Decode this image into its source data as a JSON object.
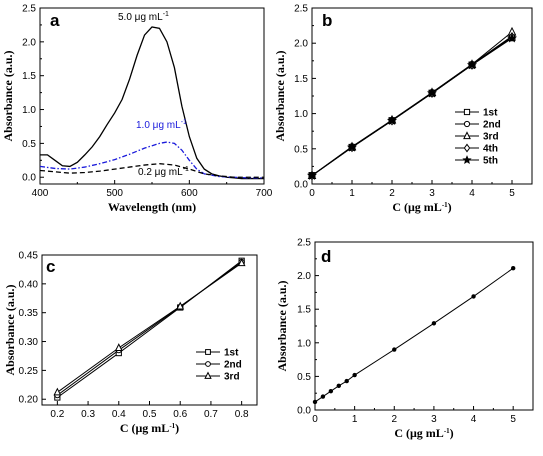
{
  "chart_data": [
    {
      "panel": "a",
      "type": "line",
      "xlabel": "Wavelength (nm)",
      "ylabel": "Absorbance (a.u.)",
      "xlim": [
        400,
        700
      ],
      "ylim": [
        -0.1,
        2.5
      ],
      "xticks": [
        400,
        500,
        600,
        700
      ],
      "yticks": [
        0.0,
        0.5,
        1.0,
        1.5,
        2.0,
        2.5
      ],
      "series": [
        {
          "name": "5.0 μg mL⁻¹",
          "color": "#000000",
          "dash": "solid",
          "x": [
            400,
            410,
            420,
            430,
            440,
            450,
            460,
            470,
            480,
            490,
            500,
            510,
            520,
            530,
            540,
            550,
            560,
            570,
            580,
            590,
            600,
            610,
            620,
            630,
            640,
            650,
            660,
            670,
            680,
            690,
            700
          ],
          "y": [
            0.33,
            0.33,
            0.25,
            0.17,
            0.16,
            0.22,
            0.33,
            0.45,
            0.6,
            0.78,
            0.95,
            1.15,
            1.45,
            1.8,
            2.1,
            2.22,
            2.2,
            2.0,
            1.62,
            1.05,
            0.6,
            0.28,
            0.12,
            0.05,
            0.02,
            0.0,
            -0.01,
            -0.02,
            -0.02,
            -0.02,
            -0.02
          ]
        },
        {
          "name": "1.0 μg mL⁻¹",
          "color": "#1a1adb",
          "dash": "dashdot",
          "x": [
            400,
            420,
            440,
            460,
            480,
            500,
            520,
            540,
            560,
            570,
            580,
            590,
            600,
            610,
            620,
            640,
            660,
            680,
            700
          ],
          "y": [
            0.16,
            0.13,
            0.12,
            0.15,
            0.2,
            0.26,
            0.34,
            0.43,
            0.5,
            0.52,
            0.5,
            0.4,
            0.25,
            0.12,
            0.05,
            0.01,
            0.0,
            -0.01,
            -0.01
          ]
        },
        {
          "name": "0.2 μg mL⁻¹",
          "color": "#000000",
          "dash": "dash",
          "x": [
            400,
            420,
            440,
            460,
            480,
            500,
            520,
            540,
            560,
            580,
            600,
            620,
            640,
            660,
            680,
            700
          ],
          "y": [
            0.1,
            0.08,
            0.06,
            0.07,
            0.09,
            0.12,
            0.15,
            0.18,
            0.2,
            0.18,
            0.12,
            0.05,
            0.02,
            0.0,
            0.0,
            0.0
          ]
        }
      ]
    },
    {
      "panel": "b",
      "type": "line",
      "xlabel": "C (μg mL⁻¹)",
      "ylabel": "Absorbance (a.u.)",
      "xlim": [
        0,
        5.5
      ],
      "ylim": [
        0,
        2.5
      ],
      "xticks": [
        0,
        1,
        2,
        3,
        4,
        5
      ],
      "yticks": [
        0.0,
        0.5,
        1.0,
        1.5,
        2.0,
        2.5
      ],
      "legend_position": "center-right",
      "x": [
        0,
        1,
        2,
        3,
        4,
        5
      ],
      "series": [
        {
          "name": "1st",
          "marker": "square",
          "values": [
            0.12,
            0.52,
            0.9,
            1.29,
            1.69,
            2.08
          ]
        },
        {
          "name": "2nd",
          "marker": "circle",
          "values": [
            0.12,
            0.53,
            0.9,
            1.3,
            1.7,
            2.1
          ]
        },
        {
          "name": "3rd",
          "marker": "triangle",
          "values": [
            0.12,
            0.53,
            0.91,
            1.3,
            1.7,
            2.16
          ]
        },
        {
          "name": "4th",
          "marker": "diamond",
          "values": [
            0.12,
            0.52,
            0.9,
            1.29,
            1.69,
            2.09
          ]
        },
        {
          "name": "5th",
          "marker": "star",
          "values": [
            0.12,
            0.52,
            0.9,
            1.29,
            1.69,
            2.07
          ]
        }
      ]
    },
    {
      "panel": "c",
      "type": "line",
      "xlabel": "C (μg mL⁻¹)",
      "ylabel": "Absorbance (a.u.)",
      "xlim": [
        0.15,
        0.85
      ],
      "ylim": [
        0.19,
        0.45
      ],
      "xticks": [
        0.2,
        0.3,
        0.4,
        0.5,
        0.6,
        0.7,
        0.8
      ],
      "yticks": [
        0.2,
        0.25,
        0.3,
        0.35,
        0.4,
        0.45
      ],
      "legend_position": "center-right",
      "x": [
        0.2,
        0.4,
        0.6,
        0.8
      ],
      "series": [
        {
          "name": "1st",
          "marker": "square",
          "values": [
            0.203,
            0.28,
            0.359,
            0.44
          ]
        },
        {
          "name": "2nd",
          "marker": "circle",
          "values": [
            0.207,
            0.285,
            0.36,
            0.438
          ]
        },
        {
          "name": "3rd",
          "marker": "triangle",
          "values": [
            0.212,
            0.289,
            0.361,
            0.436
          ]
        }
      ]
    },
    {
      "panel": "d",
      "type": "line",
      "xlabel": "C (μg mL⁻¹)",
      "ylabel": "Absorbance (a.u.)",
      "xlim": [
        0,
        5.5
      ],
      "ylim": [
        0,
        2.5
      ],
      "xticks": [
        0,
        1,
        2,
        3,
        4,
        5
      ],
      "yticks": [
        0.0,
        0.5,
        1.0,
        1.5,
        2.0,
        2.5
      ],
      "x": [
        0,
        0.2,
        0.4,
        0.6,
        0.8,
        1,
        2,
        3,
        4,
        5
      ],
      "series": [
        {
          "marker": "dot",
          "values": [
            0.12,
            0.2,
            0.28,
            0.36,
            0.43,
            0.52,
            0.9,
            1.29,
            1.69,
            2.11
          ]
        }
      ]
    }
  ]
}
